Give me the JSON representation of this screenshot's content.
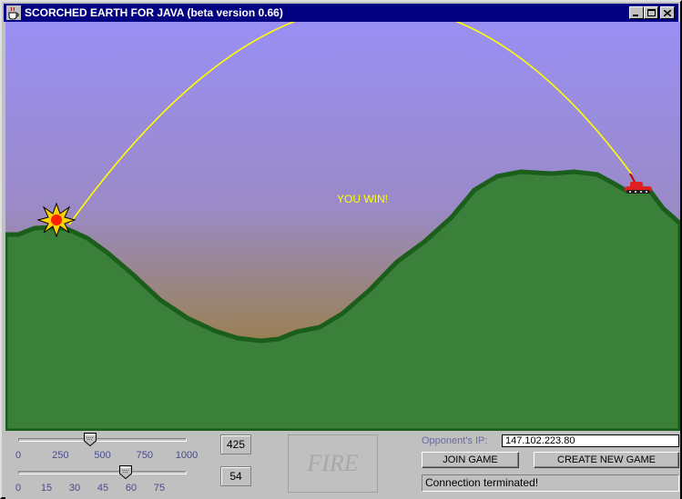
{
  "window": {
    "title": "SCORCHED EARTH FOR JAVA (beta version 0.66)"
  },
  "game": {
    "message": "YOU WIN!",
    "colors": {
      "sky_top": "#9a8ff0",
      "sky_bottom": "#9a7a40",
      "terrain": "#3a7f3a",
      "terrain_edge": "#1b5e1b",
      "trajectory": "#ffff00",
      "message": "#ffff00",
      "tank": "#e02020"
    }
  },
  "controls": {
    "power_slider": {
      "ticks": [
        "0",
        "250",
        "500",
        "750",
        "1000"
      ],
      "value": 425,
      "max": 1000
    },
    "angle_slider": {
      "ticks": [
        "0",
        "15",
        "30",
        "45",
        "60",
        "75"
      ],
      "value": 54,
      "max": 85
    },
    "power_value": "425",
    "angle_value": "54",
    "fire_label": "FIRE"
  },
  "network": {
    "ip_label": "Opponent's IP:",
    "ip_value": "147.102.223.80",
    "join_label": "JOIN GAME",
    "create_label": "CREATE NEW GAME",
    "status": "Connection terminated!"
  }
}
